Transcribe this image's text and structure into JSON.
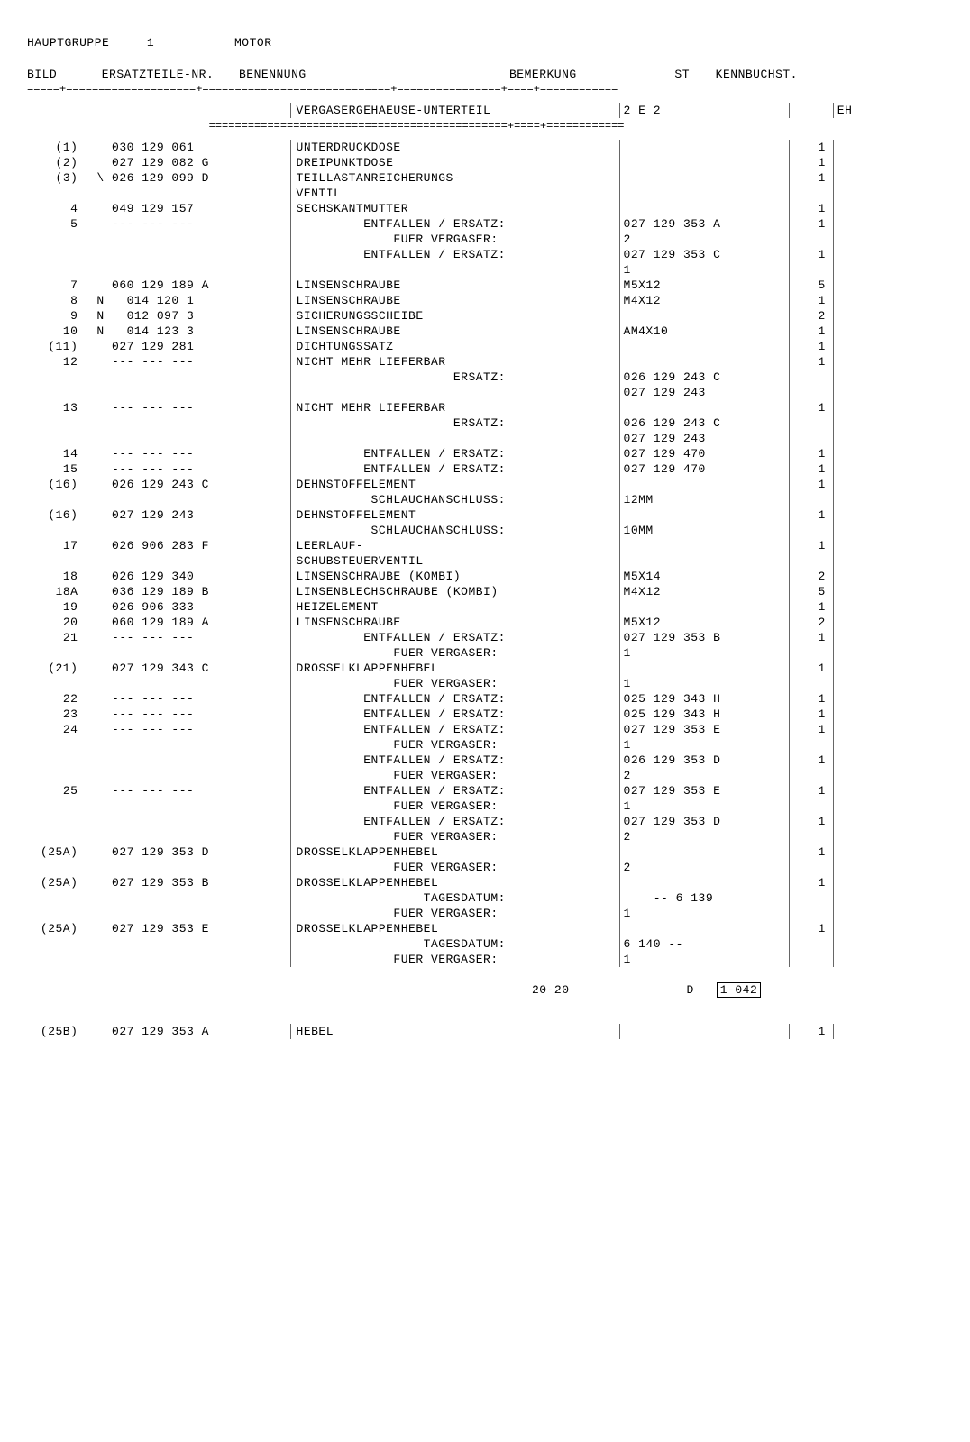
{
  "header": {
    "hauptgruppe_label": "HAUPTGRUPPE",
    "hauptgruppe_num": "1",
    "motor": "MOTOR"
  },
  "columns": {
    "bild": "BILD",
    "ersatz": "ERSATZTEILE-NR.",
    "benennung": "BENENNUNG",
    "bemerkung": "BEMERKUNG",
    "st": "ST",
    "kenn": "KENNBUCHST."
  },
  "divider_pattern": "=====+====================+=============================+================+====+============",
  "section_title": {
    "benennung": "VERGASERGEHAEUSE-UNTERTEIL",
    "bemerkung": "2 E 2",
    "kenn": "EH"
  },
  "section_divider": "                            ==============================================+====+============",
  "rows": [
    {
      "bild": "(1)",
      "ersatz": "  030 129 061",
      "benennung": "UNTERDRUCKDOSE",
      "bem": "",
      "st": "1",
      "kenn": ""
    },
    {
      "bild": "(2)",
      "ersatz": "  027 129 082 G",
      "benennung": "DREIPUNKTDOSE",
      "bem": "",
      "st": "1",
      "kenn": ""
    },
    {
      "bild": "(3)",
      "ersatz": "\\ 026 129 099 D",
      "benennung": "TEILLASTANREICHERUNGS-",
      "bem": "",
      "st": "1",
      "kenn": ""
    },
    {
      "bild": "",
      "ersatz": "",
      "benennung": "VENTIL",
      "bem": "",
      "st": "",
      "kenn": ""
    },
    {
      "bild": "4",
      "ersatz": "  049 129 157",
      "benennung": "SECHSKANTMUTTER",
      "bem": "",
      "st": "1",
      "kenn": ""
    },
    {
      "bild": "5",
      "ersatz": "  --- --- ---",
      "benennung": "         ENTFALLEN / ERSATZ:",
      "bem": "027 129 353 A",
      "st": "1",
      "kenn": ""
    },
    {
      "bild": "",
      "ersatz": "",
      "benennung": "             FUER VERGASER:",
      "bem": "2",
      "st": "",
      "kenn": ""
    },
    {
      "bild": "",
      "ersatz": "",
      "benennung": "         ENTFALLEN / ERSATZ:",
      "bem": "027 129 353 C",
      "st": "1",
      "kenn": ""
    },
    {
      "bild": "",
      "ersatz": "",
      "benennung": "",
      "bem": "1",
      "st": "",
      "kenn": ""
    },
    {
      "bild": "7",
      "ersatz": "  060 129 189 A",
      "benennung": "LINSENSCHRAUBE",
      "bem": "M5X12",
      "st": "5",
      "kenn": ""
    },
    {
      "bild": "8",
      "ersatz": "N   014 120 1",
      "benennung": "LINSENSCHRAUBE",
      "bem": "M4X12",
      "st": "1",
      "kenn": ""
    },
    {
      "bild": "9",
      "ersatz": "N   012 097 3",
      "benennung": "SICHERUNGSSCHEIBE",
      "bem": "",
      "st": "2",
      "kenn": ""
    },
    {
      "bild": "10",
      "ersatz": "N   014 123 3",
      "benennung": "LINSENSCHRAUBE",
      "bem": "AM4X10",
      "st": "1",
      "kenn": ""
    },
    {
      "bild": "(11)",
      "ersatz": "  027 129 281",
      "benennung": "DICHTUNGSSATZ",
      "bem": "",
      "st": "1",
      "kenn": ""
    },
    {
      "bild": "12",
      "ersatz": "  --- --- ---",
      "benennung": "NICHT MEHR LIEFERBAR",
      "bem": "",
      "st": "1",
      "kenn": ""
    },
    {
      "bild": "",
      "ersatz": "",
      "benennung": "                     ERSATZ:",
      "bem": "026 129 243 C",
      "st": "",
      "kenn": ""
    },
    {
      "bild": "",
      "ersatz": "",
      "benennung": "",
      "bem": "027 129 243",
      "st": "",
      "kenn": ""
    },
    {
      "bild": "13",
      "ersatz": "  --- --- ---",
      "benennung": "NICHT MEHR LIEFERBAR",
      "bem": "",
      "st": "1",
      "kenn": ""
    },
    {
      "bild": "",
      "ersatz": "",
      "benennung": "                     ERSATZ:",
      "bem": "026 129 243 C",
      "st": "",
      "kenn": ""
    },
    {
      "bild": "",
      "ersatz": "",
      "benennung": "",
      "bem": "027 129 243",
      "st": "",
      "kenn": ""
    },
    {
      "bild": "14",
      "ersatz": "  --- --- ---",
      "benennung": "         ENTFALLEN / ERSATZ:",
      "bem": "027 129 470",
      "st": "1",
      "kenn": ""
    },
    {
      "bild": "15",
      "ersatz": "  --- --- ---",
      "benennung": "         ENTFALLEN / ERSATZ:",
      "bem": "027 129 470",
      "st": "1",
      "kenn": ""
    },
    {
      "bild": "(16)",
      "ersatz": "  026 129 243 C",
      "benennung": "DEHNSTOFFELEMENT",
      "bem": "",
      "st": "1",
      "kenn": ""
    },
    {
      "bild": "",
      "ersatz": "",
      "benennung": "          SCHLAUCHANSCHLUSS:",
      "bem": "12MM",
      "st": "",
      "kenn": ""
    },
    {
      "bild": "(16)",
      "ersatz": "  027 129 243",
      "benennung": "DEHNSTOFFELEMENT",
      "bem": "",
      "st": "1",
      "kenn": ""
    },
    {
      "bild": "",
      "ersatz": "",
      "benennung": "          SCHLAUCHANSCHLUSS:",
      "bem": "10MM",
      "st": "",
      "kenn": ""
    },
    {
      "bild": "17",
      "ersatz": "  026 906 283 F",
      "benennung": "LEERLAUF-",
      "bem": "",
      "st": "1",
      "kenn": ""
    },
    {
      "bild": "",
      "ersatz": "",
      "benennung": "SCHUBSTEUERVENTIL",
      "bem": "",
      "st": "",
      "kenn": ""
    },
    {
      "bild": "18",
      "ersatz": "  026 129 340",
      "benennung": "LINSENSCHRAUBE (KOMBI)",
      "bem": "M5X14",
      "st": "2",
      "kenn": ""
    },
    {
      "bild": "18A",
      "ersatz": "  036 129 189 B",
      "benennung": "LINSENBLECHSCHRAUBE (KOMBI)",
      "bem": "M4X12",
      "st": "5",
      "kenn": ""
    },
    {
      "bild": "19",
      "ersatz": "  026 906 333",
      "benennung": "HEIZELEMENT",
      "bem": "",
      "st": "1",
      "kenn": ""
    },
    {
      "bild": "20",
      "ersatz": "  060 129 189 A",
      "benennung": "LINSENSCHRAUBE",
      "bem": "M5X12",
      "st": "2",
      "kenn": ""
    },
    {
      "bild": "21",
      "ersatz": "  --- --- ---",
      "benennung": "         ENTFALLEN / ERSATZ:",
      "bem": "027 129 353 B",
      "st": "1",
      "kenn": ""
    },
    {
      "bild": "",
      "ersatz": "",
      "benennung": "             FUER VERGASER:",
      "bem": "1",
      "st": "",
      "kenn": ""
    },
    {
      "bild": "(21)",
      "ersatz": "  027 129 343 C",
      "benennung": "DROSSELKLAPPENHEBEL",
      "bem": "",
      "st": "1",
      "kenn": ""
    },
    {
      "bild": "",
      "ersatz": "",
      "benennung": "             FUER VERGASER:",
      "bem": "1",
      "st": "",
      "kenn": ""
    },
    {
      "bild": "22",
      "ersatz": "  --- --- ---",
      "benennung": "         ENTFALLEN / ERSATZ:",
      "bem": "025 129 343 H",
      "st": "1",
      "kenn": ""
    },
    {
      "bild": "23",
      "ersatz": "  --- --- ---",
      "benennung": "         ENTFALLEN / ERSATZ:",
      "bem": "025 129 343 H",
      "st": "1",
      "kenn": ""
    },
    {
      "bild": "24",
      "ersatz": "  --- --- ---",
      "benennung": "         ENTFALLEN / ERSATZ:",
      "bem": "027 129 353 E",
      "st": "1",
      "kenn": ""
    },
    {
      "bild": "",
      "ersatz": "",
      "benennung": "             FUER VERGASER:",
      "bem": "1",
      "st": "",
      "kenn": ""
    },
    {
      "bild": "",
      "ersatz": "",
      "benennung": "         ENTFALLEN / ERSATZ:",
      "bem": "026 129 353 D",
      "st": "1",
      "kenn": ""
    },
    {
      "bild": "",
      "ersatz": "",
      "benennung": "             FUER VERGASER:",
      "bem": "2",
      "st": "",
      "kenn": ""
    },
    {
      "bild": "25",
      "ersatz": "  --- --- ---",
      "benennung": "         ENTFALLEN / ERSATZ:",
      "bem": "027 129 353 E",
      "st": "1",
      "kenn": ""
    },
    {
      "bild": "",
      "ersatz": "",
      "benennung": "             FUER VERGASER:",
      "bem": "1",
      "st": "",
      "kenn": ""
    },
    {
      "bild": "",
      "ersatz": "",
      "benennung": "         ENTFALLEN / ERSATZ:",
      "bem": "027 129 353 D",
      "st": "1",
      "kenn": ""
    },
    {
      "bild": "",
      "ersatz": "",
      "benennung": "             FUER VERGASER:",
      "bem": "2",
      "st": "",
      "kenn": ""
    },
    {
      "bild": "(25A)",
      "ersatz": "  027 129 353 D",
      "benennung": "DROSSELKLAPPENHEBEL",
      "bem": "",
      "st": "1",
      "kenn": ""
    },
    {
      "bild": "",
      "ersatz": "",
      "benennung": "             FUER VERGASER:",
      "bem": "2",
      "st": "",
      "kenn": ""
    },
    {
      "bild": "(25A)",
      "ersatz": "  027 129 353 B",
      "benennung": "DROSSELKLAPPENHEBEL",
      "bem": "",
      "st": "1",
      "kenn": ""
    },
    {
      "bild": "",
      "ersatz": "",
      "benennung": "                 TAGESDATUM:",
      "bem": "    -- 6 139",
      "st": "",
      "kenn": ""
    },
    {
      "bild": "",
      "ersatz": "",
      "benennung": "             FUER VERGASER:",
      "bem": "1",
      "st": "",
      "kenn": ""
    },
    {
      "bild": "(25A)",
      "ersatz": "  027 129 353 E",
      "benennung": "DROSSELKLAPPENHEBEL",
      "bem": "",
      "st": "1",
      "kenn": ""
    },
    {
      "bild": "",
      "ersatz": "",
      "benennung": "                 TAGESDATUM:",
      "bem": "6 140 --",
      "st": "",
      "kenn": ""
    },
    {
      "bild": "",
      "ersatz": "",
      "benennung": "             FUER VERGASER:",
      "bem": "1",
      "st": "",
      "kenn": ""
    }
  ],
  "footer": {
    "page": "20-20",
    "d": "D",
    "code": "1-042"
  },
  "extra_row": {
    "bild": "(25B)",
    "ersatz": "  027 129 353 A",
    "benennung": "HEBEL",
    "bem": "",
    "st": "1",
    "kenn": ""
  }
}
